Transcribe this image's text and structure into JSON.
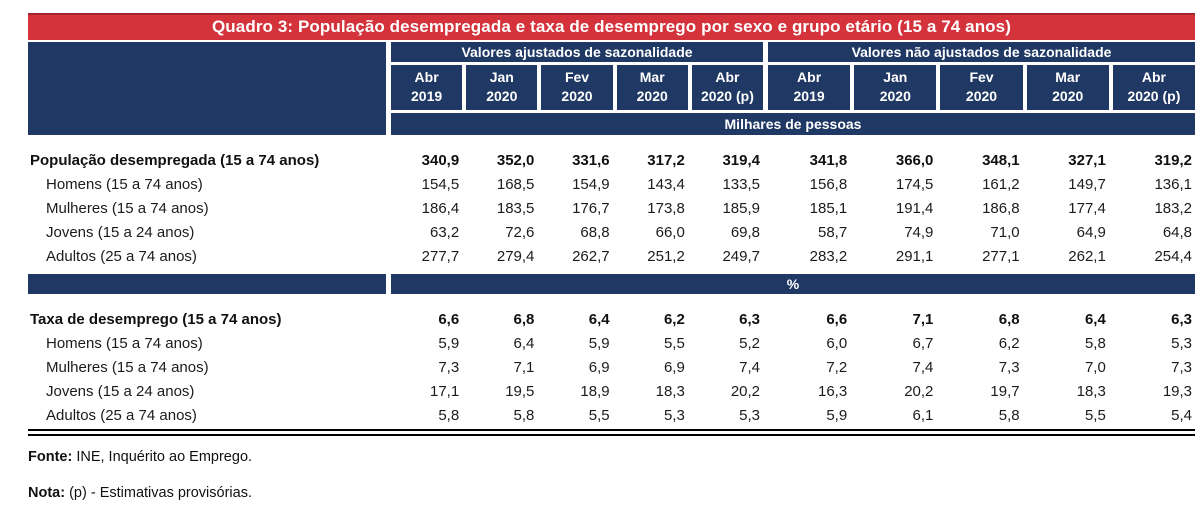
{
  "title": "Quadro 3: População desempregada e taxa de desemprego por sexo e grupo etário (15 a 74 anos)",
  "colors": {
    "navy": "#1F3864",
    "red": "#D4333B"
  },
  "table": {
    "groups": [
      {
        "label": "Valores ajustados de sazonalidade",
        "columns": [
          {
            "m": "Abr",
            "y": "2019"
          },
          {
            "m": "Jan",
            "y": "2020"
          },
          {
            "m": "Fev",
            "y": "2020"
          },
          {
            "m": "Mar",
            "y": "2020"
          },
          {
            "m": "Abr",
            "y": "2020 (p)"
          }
        ]
      },
      {
        "label": "Valores não ajustados de sazonalidade",
        "columns": [
          {
            "m": "Abr",
            "y": "2019"
          },
          {
            "m": "Jan",
            "y": "2020"
          },
          {
            "m": "Fev",
            "y": "2020"
          },
          {
            "m": "Mar",
            "y": "2020"
          },
          {
            "m": "Abr",
            "y": "2020 (p)"
          }
        ]
      }
    ],
    "sections": [
      {
        "band": "Milhares de pessoas",
        "rows": [
          {
            "label": "População desempregada (15 a 74 anos)",
            "adjusted": [
              "340,9",
              "352,0",
              "331,6",
              "317,2",
              "319,4"
            ],
            "unadjusted": [
              "341,8",
              "366,0",
              "348,1",
              "327,1",
              "319,2"
            ]
          },
          {
            "label": "Homens (15 a 74 anos)",
            "adjusted": [
              "154,5",
              "168,5",
              "154,9",
              "143,4",
              "133,5"
            ],
            "unadjusted": [
              "156,8",
              "174,5",
              "161,2",
              "149,7",
              "136,1"
            ]
          },
          {
            "label": "Mulheres (15 a 74 anos)",
            "adjusted": [
              "186,4",
              "183,5",
              "176,7",
              "173,8",
              "185,9"
            ],
            "unadjusted": [
              "185,1",
              "191,4",
              "186,8",
              "177,4",
              "183,2"
            ]
          },
          {
            "label": "Jovens (15 a 24 anos)",
            "adjusted": [
              "63,2",
              "72,6",
              "68,8",
              "66,0",
              "69,8"
            ],
            "unadjusted": [
              "58,7",
              "74,9",
              "71,0",
              "64,9",
              "64,8"
            ]
          },
          {
            "label": "Adultos (25 a 74 anos)",
            "adjusted": [
              "277,7",
              "279,4",
              "262,7",
              "251,2",
              "249,7"
            ],
            "unadjusted": [
              "283,2",
              "291,1",
              "277,1",
              "262,1",
              "254,4"
            ]
          }
        ]
      },
      {
        "band": "%",
        "rows": [
          {
            "label": "Taxa de desemprego (15 a 74 anos)",
            "adjusted": [
              "6,6",
              "6,8",
              "6,4",
              "6,2",
              "6,3"
            ],
            "unadjusted": [
              "6,6",
              "7,1",
              "6,8",
              "6,4",
              "6,3"
            ]
          },
          {
            "label": "Homens (15 a 74 anos)",
            "adjusted": [
              "5,9",
              "6,4",
              "5,9",
              "5,5",
              "5,2"
            ],
            "unadjusted": [
              "6,0",
              "6,7",
              "6,2",
              "5,8",
              "5,3"
            ]
          },
          {
            "label": "Mulheres (15 a 74 anos)",
            "adjusted": [
              "7,3",
              "7,1",
              "6,9",
              "6,9",
              "7,4"
            ],
            "unadjusted": [
              "7,2",
              "7,4",
              "7,3",
              "7,0",
              "7,3"
            ]
          },
          {
            "label": "Jovens (15 a 24 anos)",
            "adjusted": [
              "17,1",
              "19,5",
              "18,9",
              "18,3",
              "20,2"
            ],
            "unadjusted": [
              "16,3",
              "20,2",
              "19,7",
              "18,3",
              "19,3"
            ]
          },
          {
            "label": "Adultos (25 a 74 anos)",
            "adjusted": [
              "5,8",
              "5,8",
              "5,5",
              "5,3",
              "5,3"
            ],
            "unadjusted": [
              "5,9",
              "6,1",
              "5,8",
              "5,5",
              "5,4"
            ]
          }
        ]
      }
    ]
  },
  "footer": {
    "fonte_label": "Fonte:",
    "fonte_text": " INE, Inquérito ao Emprego.",
    "nota_label": "Nota:",
    "nota_text": " (p) - Estimativas provisórias."
  }
}
